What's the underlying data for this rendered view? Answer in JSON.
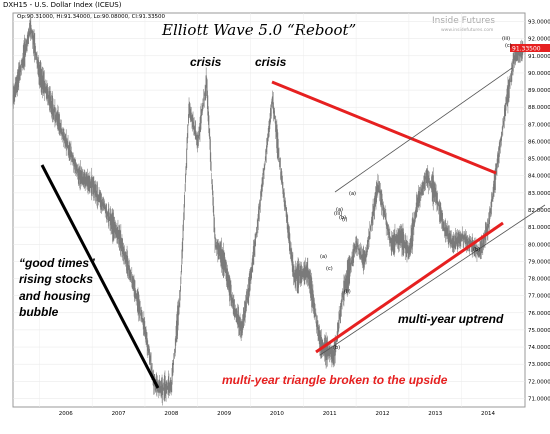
{
  "header": {
    "symbol_line": "DXH15 - U.S. Dollar Index (ICEUS)",
    "ohlc_line": "Op:90.31000, Hi:91.34000, Lo:90.08000, Cl:91.33500",
    "watermark_brand": "Inside Futures",
    "watermark_url": "www.insidefutures.com"
  },
  "chart_data": {
    "type": "line",
    "title": "Elliott Wave 5.0 “Reboot”",
    "x_ticks": [
      "2006",
      "2007",
      "2008",
      "2009",
      "2010",
      "2011",
      "2012",
      "2013",
      "2014"
    ],
    "y_ticks": [
      "71.00000",
      "72.00000",
      "73.00000",
      "74.00000",
      "75.00000",
      "76.00000",
      "77.00000",
      "78.00000",
      "79.00000",
      "80.00000",
      "81.00000",
      "82.00000",
      "83.00000",
      "84.00000",
      "85.00000",
      "86.00000",
      "87.00000",
      "88.00000",
      "89.00000",
      "90.00000",
      "91.00000",
      "92.00000",
      "93.00000"
    ],
    "ylim": [
      70.5,
      93.5
    ],
    "last_price_label": "91.33500",
    "x": [
      "2005-07",
      "2005-10",
      "2005-11",
      "2006-01",
      "2006-04",
      "2006-07",
      "2006-10",
      "2007-01",
      "2007-04",
      "2007-07",
      "2007-10",
      "2008-01",
      "2008-03",
      "2008-05",
      "2008-07",
      "2008-09",
      "2008-11",
      "2009-01",
      "2009-03",
      "2009-05",
      "2009-07",
      "2009-09",
      "2009-11",
      "2010-01",
      "2010-03",
      "2010-06",
      "2010-08",
      "2010-11",
      "2011-02",
      "2011-05",
      "2011-08",
      "2011-10",
      "2012-01",
      "2012-03",
      "2012-06",
      "2012-09",
      "2012-11",
      "2013-01",
      "2013-03",
      "2013-05",
      "2013-07",
      "2013-09",
      "2013-11",
      "2014-01",
      "2014-03",
      "2014-05",
      "2014-07",
      "2014-09",
      "2014-11",
      "2015-01",
      "2015-03"
    ],
    "values": [
      88.5,
      91.5,
      92.8,
      90.0,
      88.0,
      86.0,
      84.0,
      83.5,
      82.0,
      80.5,
      78.0,
      75.0,
      72.0,
      71.5,
      71.8,
      77.0,
      88.0,
      86.0,
      89.5,
      80.0,
      79.0,
      76.5,
      75.0,
      78.0,
      82.0,
      88.5,
      84.0,
      78.0,
      78.5,
      74.0,
      73.5,
      77.0,
      80.0,
      79.0,
      83.5,
      80.0,
      80.5,
      79.5,
      82.5,
      84.0,
      83.0,
      81.0,
      80.0,
      80.5,
      80.0,
      79.5,
      81.0,
      84.5,
      88.0,
      91.0,
      91.3
    ],
    "annotations": {
      "crisis": "crisis",
      "good_times": [
        "“good times”",
        "rising stocks",
        "and housing",
        "bubble"
      ],
      "uptrend": "multi-year uptrend",
      "triangle": "multi-year triangle broken to the upside"
    },
    "wave_labels": [
      "(a)",
      "(b)",
      "(c)",
      "(i)",
      "(ii)",
      "(a)",
      "(iii)",
      "(a)",
      "(b)",
      "(b)",
      "(iii)",
      "(c)"
    ],
    "colors": {
      "price": "#7a7a7a",
      "trend_red": "#e62020",
      "trend_black": "#000000",
      "channel": "#555555",
      "annotation_red": "#e62020"
    }
  }
}
